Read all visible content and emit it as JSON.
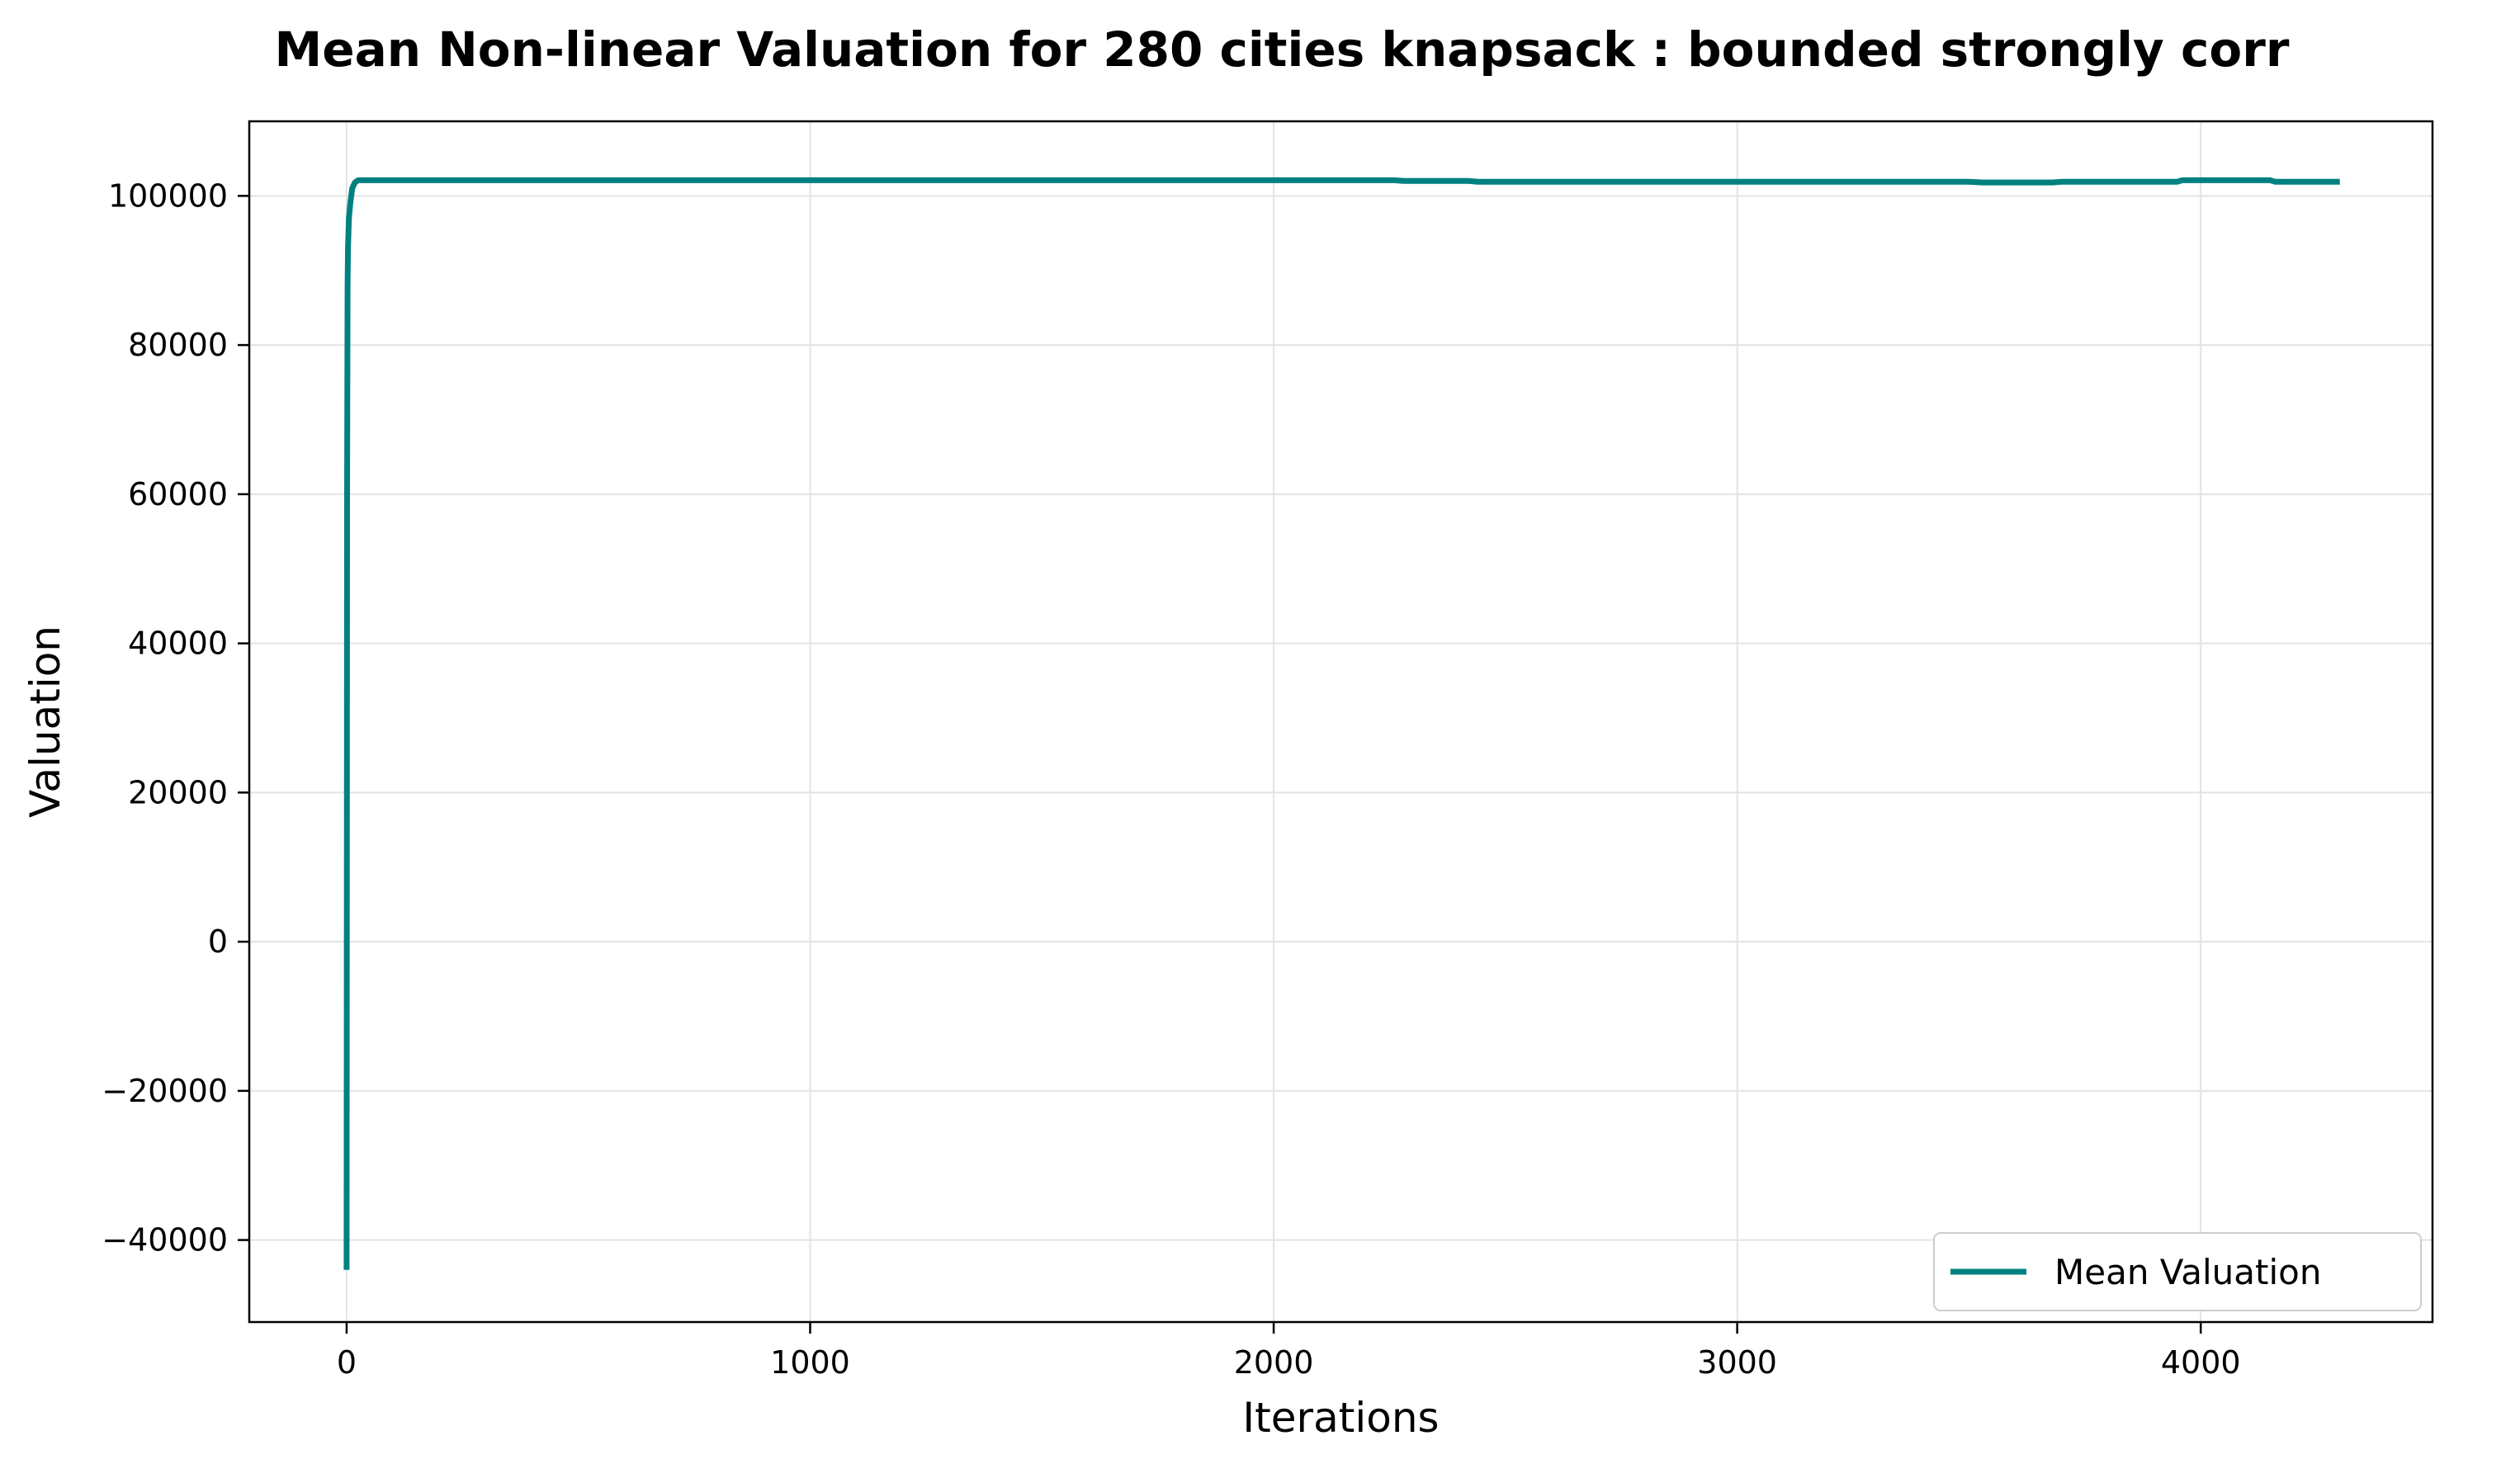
{
  "chart_data": {
    "type": "line",
    "title": "Mean Non-linear Valuation for 280 cities knapsack : bounded strongly corr",
    "xlabel": "Iterations",
    "ylabel": "Valuation",
    "xlim": [
      -210,
      4500
    ],
    "ylim": [
      -51000,
      110000
    ],
    "xticks": [
      0,
      1000,
      2000,
      3000,
      4000
    ],
    "xtick_labels": [
      "0",
      "1000",
      "2000",
      "3000",
      "4000"
    ],
    "yticks": [
      -40000,
      -20000,
      0,
      20000,
      40000,
      60000,
      80000,
      100000
    ],
    "ytick_labels": [
      "−40000",
      "−20000",
      "0",
      "20000",
      "40000",
      "60000",
      "80000",
      "100000"
    ],
    "grid": true,
    "legend_position": "lower right",
    "series": [
      {
        "name": "Mean Valuation",
        "color": "#008080",
        "x": [
          0,
          1,
          2,
          3,
          5,
          8,
          12,
          18,
          25,
          40,
          100,
          500,
          1000,
          1500,
          2000,
          2260,
          2280,
          2420,
          2440,
          3000,
          3500,
          3530,
          3680,
          3700,
          3950,
          3960,
          4150,
          4160,
          4300
        ],
        "y": [
          -44000,
          60000,
          88000,
          93000,
          97000,
          99000,
          101000,
          101800,
          102100,
          102100,
          102100,
          102100,
          102100,
          102100,
          102100,
          102100,
          102000,
          102000,
          101900,
          101900,
          101900,
          101800,
          101800,
          101900,
          101900,
          102100,
          102100,
          101900,
          101900
        ]
      }
    ]
  }
}
